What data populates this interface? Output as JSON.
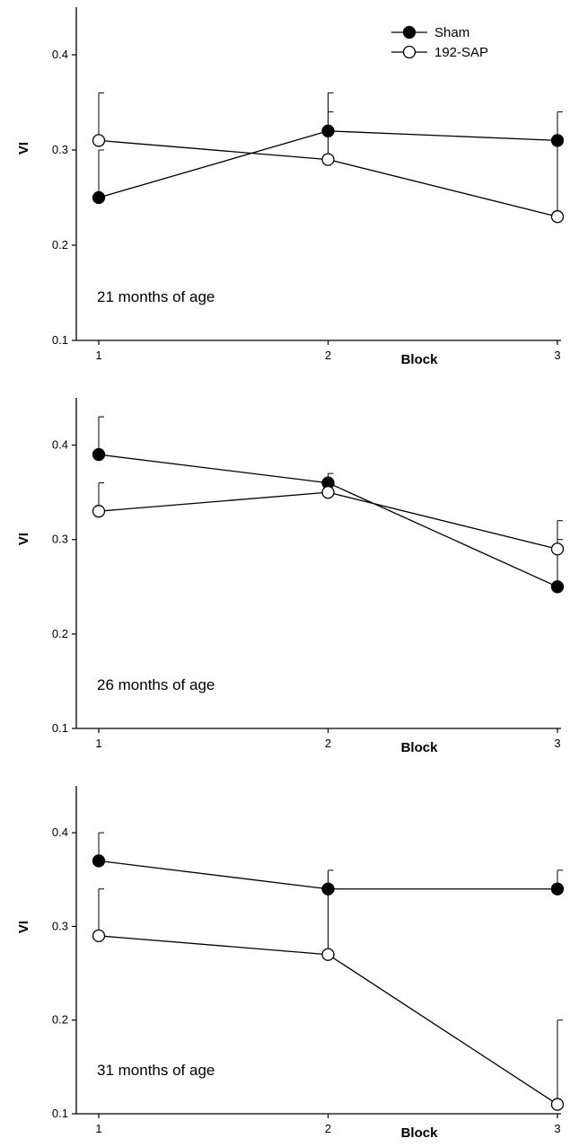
{
  "chart_data": [
    {
      "type": "line",
      "annotation": "21 months of age",
      "xlabel": "Block",
      "ylabel": "VI",
      "x": [
        1,
        2,
        3
      ],
      "xticks": [
        "1",
        "2",
        "3"
      ],
      "ylim": [
        0.1,
        0.45
      ],
      "yticks": [
        "0.1",
        "0.2",
        "0.3",
        "0.4"
      ],
      "grid": false,
      "legend": "top-right",
      "series": [
        {
          "name": "Sham",
          "marker": "filled-circle",
          "values": [
            0.25,
            0.32,
            0.31
          ],
          "error_upper": [
            0.3,
            0.36,
            0.34
          ]
        },
        {
          "name": "192-SAP",
          "marker": "open-circle",
          "values": [
            0.31,
            0.29,
            0.23
          ],
          "error_upper": [
            0.36,
            0.34,
            0.31
          ]
        }
      ]
    },
    {
      "type": "line",
      "annotation": "26 months of age",
      "xlabel": "Block",
      "ylabel": "VI",
      "x": [
        1,
        2,
        3
      ],
      "xticks": [
        "1",
        "2",
        "3"
      ],
      "ylim": [
        0.1,
        0.45
      ],
      "yticks": [
        "0.1",
        "0.2",
        "0.3",
        "0.4"
      ],
      "grid": false,
      "series": [
        {
          "name": "Sham",
          "marker": "filled-circle",
          "values": [
            0.39,
            0.36,
            0.25
          ],
          "error_upper": [
            0.43,
            0.37,
            0.32
          ]
        },
        {
          "name": "192-SAP",
          "marker": "open-circle",
          "values": [
            0.33,
            0.35,
            0.29
          ],
          "error_upper": [
            0.36,
            0.36,
            0.3
          ]
        }
      ]
    },
    {
      "type": "line",
      "annotation": "31 months of age",
      "xlabel": "Block",
      "ylabel": "VI",
      "x": [
        1,
        2,
        3
      ],
      "xticks": [
        "1",
        "2",
        "3"
      ],
      "ylim": [
        0.1,
        0.45
      ],
      "yticks": [
        "0.1",
        "0.2",
        "0.3",
        "0.4"
      ],
      "grid": false,
      "series": [
        {
          "name": "Sham",
          "marker": "filled-circle",
          "values": [
            0.37,
            0.34,
            0.34
          ],
          "error_upper": [
            0.4,
            0.36,
            0.36
          ]
        },
        {
          "name": "192-SAP",
          "marker": "open-circle",
          "values": [
            0.29,
            0.27,
            0.11
          ],
          "error_upper": [
            0.34,
            0.34,
            0.2
          ]
        }
      ]
    }
  ]
}
